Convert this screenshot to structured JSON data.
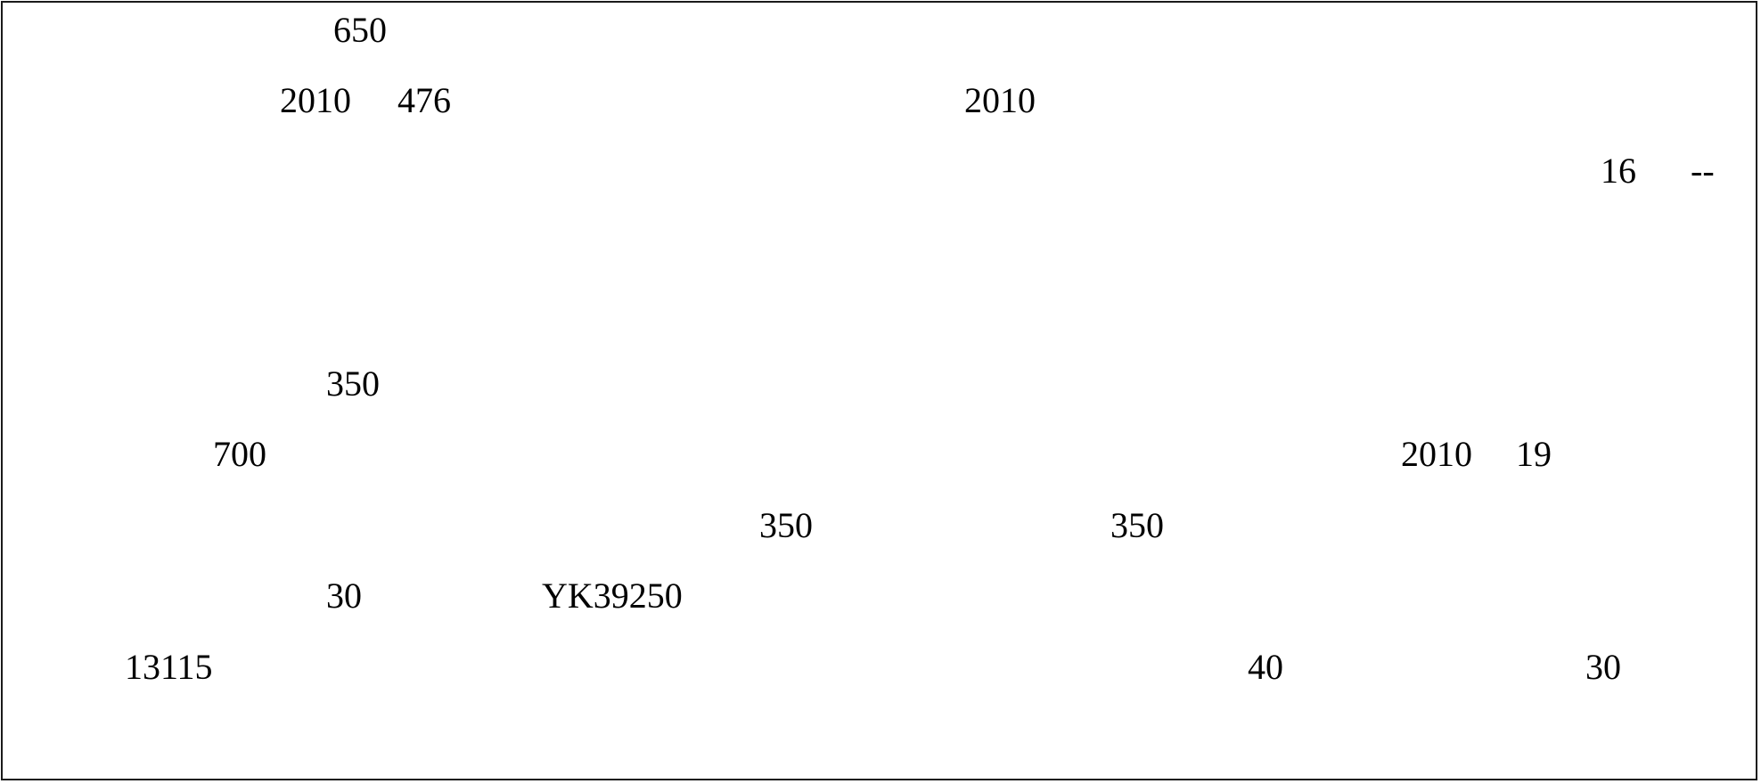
{
  "document": {
    "lines": [
      {
        "fragments": [
          "650"
        ]
      },
      {
        "fragments": [
          "2010",
          "476",
          "2010"
        ]
      },
      {
        "fragments": [
          "16",
          "--"
        ]
      },
      {
        "fragments": [
          "350"
        ]
      },
      {
        "fragments": [
          "700",
          "2010",
          "19"
        ]
      },
      {
        "fragments": [
          "350",
          "350"
        ]
      },
      {
        "fragments": [
          "30",
          "YK39250"
        ]
      },
      {
        "fragments": [
          "13115",
          "40",
          "30"
        ]
      }
    ]
  }
}
